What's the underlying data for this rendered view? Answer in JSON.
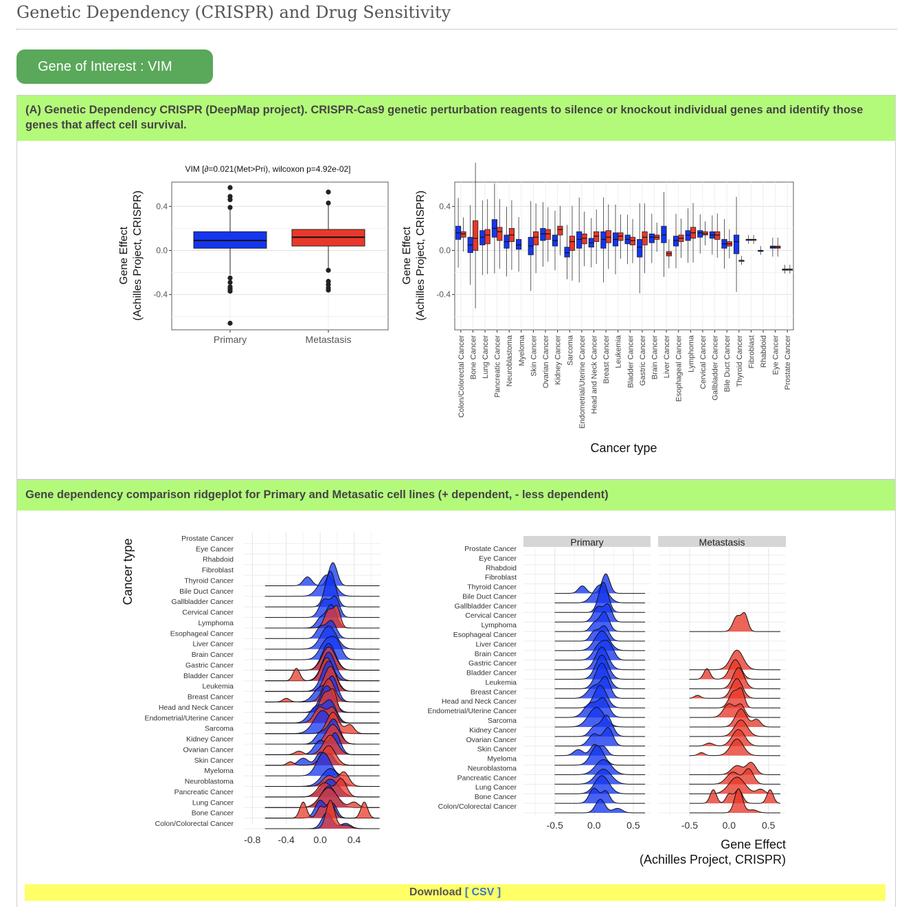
{
  "page": {
    "title": "Genetic Dependency (CRISPR) and Drug Sensitivity"
  },
  "gene": {
    "label": "Gene of Interest : VIM"
  },
  "panel_a": {
    "heading": "(A) Genetic Dependency CRISPR (DeepMap project). CRISPR-Cas9 genetic perturbation reagents to silence or knockout individual genes and identify those genes that affect cell survival."
  },
  "panel_b": {
    "heading": "Gene dependency comparison ridgeplot for Primary and Metasatic cell lines (+ dependent, - less dependent)"
  },
  "download": {
    "label": "Download",
    "open": "[",
    "csv": "CSV",
    "close": "]"
  },
  "colors": {
    "primary": "#1436f0",
    "metastasis": "#e8392a",
    "green_header": "#b4fa7a",
    "pill": "#5aa85a",
    "download_bar": "#ffff66"
  },
  "chart_data": [
    {
      "type": "box",
      "title": "VIM [∂=0.021(Met>Pri), wilcoxon p=4.92e-02]",
      "xlabel": "",
      "ylabel_line1": "Gene Effect",
      "ylabel_line2": "(Achilles Project, CRISPR)",
      "ylim": [
        -0.72,
        0.62
      ],
      "yticks": [
        -0.4,
        0.0,
        0.4
      ],
      "ytick_labels": [
        "-0.4",
        "0.0",
        "0.4"
      ],
      "grid": true,
      "categories": [
        "Primary",
        "Metastasis"
      ],
      "series": [
        {
          "category": "Primary",
          "color": "#1436f0",
          "q1": 0.02,
          "median": 0.09,
          "q3": 0.17,
          "whisker_low": -0.22,
          "whisker_high": 0.39,
          "outliers": [
            0.57,
            0.49,
            0.46,
            0.39,
            -0.25,
            -0.29,
            -0.33,
            -0.35,
            -0.37,
            -0.66
          ]
        },
        {
          "category": "Metastasis",
          "color": "#e8392a",
          "q1": 0.04,
          "median": 0.12,
          "q3": 0.19,
          "whisker_low": -0.18,
          "whisker_high": 0.42,
          "outliers": [
            0.53,
            0.43,
            -0.18,
            -0.28,
            -0.31,
            -0.34,
            -0.36
          ]
        }
      ]
    },
    {
      "type": "box",
      "title": "",
      "xlabel": "Cancer type",
      "ylabel_line1": "Gene Effect",
      "ylabel_line2": "(Achilles Project, CRISPR)",
      "ylim": [
        -0.72,
        0.62
      ],
      "yticks": [
        -0.4,
        0.0,
        0.4
      ],
      "ytick_labels": [
        "-0.4",
        "0.0",
        "0.4"
      ],
      "grid": true,
      "categories": [
        "Colon/Colorectal Cancer",
        "Bone Cancer",
        "Lung Cancer",
        "Pancreatic Cancer",
        "Neuroblastoma",
        "Myeloma",
        "Skin Cancer",
        "Ovarian Cancer",
        "Kidney Cancer",
        "Sarcoma",
        "Endometrial/Uterine Cancer",
        "Head and Neck Cancer",
        "Breast Cancer",
        "Leukemia",
        "Bladder Cancer",
        "Gastric Cancer",
        "Brain Cancer",
        "Liver Cancer",
        "Esophageal Cancer",
        "Lymphoma",
        "Cervical Cancer",
        "Gallbladder Cancer",
        "Bile Duct Cancer",
        "Thyroid Cancer",
        "Fibroblast",
        "Rhabdoid",
        "Eye Cancer",
        "Prostate Cancer"
      ],
      "series": [
        {
          "name": "Primary",
          "color": "#1436f0",
          "boxes": [
            [
              0.1,
              0.16,
              0.22
            ],
            [
              -0.02,
              0.05,
              0.12
            ],
            [
              0.05,
              0.12,
              0.18
            ],
            [
              0.12,
              0.2,
              0.28
            ],
            [
              0.02,
              0.08,
              0.14
            ],
            [
              0.01,
              0.05,
              0.1
            ],
            [
              -0.04,
              0.04,
              0.12
            ],
            [
              0.09,
              0.15,
              0.2
            ],
            [
              0.04,
              0.09,
              0.14
            ],
            [
              -0.06,
              -0.02,
              0.03
            ],
            [
              0.02,
              0.1,
              0.17
            ],
            [
              0.03,
              0.07,
              0.11
            ],
            [
              0.02,
              0.1,
              0.17
            ],
            [
              0.04,
              0.1,
              0.16
            ],
            [
              0.06,
              0.1,
              0.14
            ],
            [
              -0.06,
              0.03,
              0.1
            ],
            [
              0.07,
              0.12,
              0.15
            ],
            [
              0.07,
              0.14,
              0.22
            ],
            [
              0.04,
              0.09,
              0.13
            ],
            [
              0.09,
              0.14,
              0.18
            ],
            [
              0.12,
              0.16,
              0.18
            ],
            [
              0.11,
              0.14,
              0.17
            ],
            [
              0.02,
              0.06,
              0.1
            ],
            [
              -0.03,
              0.08,
              0.14
            ],
            [
              0.1,
              0.1,
              0.1
            ],
            [
              0.0,
              0.0,
              0.0
            ],
            [
              0.02,
              0.03,
              0.04
            ],
            [
              -0.17,
              -0.17,
              -0.17
            ]
          ]
        },
        {
          "name": "Metastasis",
          "color": "#e8392a",
          "boxes": [
            [
              0.12,
              0.15,
              0.17
            ],
            [
              0.0,
              0.11,
              0.27
            ],
            [
              0.06,
              0.14,
              0.19
            ],
            [
              0.09,
              0.17,
              0.21
            ],
            [
              0.08,
              0.14,
              0.2
            ],
            [
              null,
              null,
              null
            ],
            [
              0.05,
              0.12,
              0.17
            ],
            [
              0.1,
              0.15,
              0.19
            ],
            [
              0.14,
              0.19,
              0.22
            ],
            [
              0.0,
              0.08,
              0.13
            ],
            [
              0.06,
              0.11,
              0.15
            ],
            [
              0.08,
              0.13,
              0.17
            ],
            [
              0.07,
              0.12,
              0.18
            ],
            [
              0.09,
              0.13,
              0.16
            ],
            [
              0.05,
              0.09,
              0.12
            ],
            [
              0.05,
              0.12,
              0.17
            ],
            [
              0.1,
              0.12,
              0.14
            ],
            [
              -0.05,
              -0.03,
              -0.01
            ],
            [
              0.08,
              0.11,
              0.14
            ],
            [
              0.11,
              0.16,
              0.21
            ],
            [
              0.14,
              0.15,
              0.17
            ],
            [
              0.1,
              0.14,
              0.17
            ],
            [
              0.04,
              0.06,
              0.08
            ],
            [
              -0.09,
              -0.09,
              -0.09
            ],
            [
              0.1,
              0.1,
              0.1
            ],
            [
              null,
              null,
              null
            ],
            [
              0.02,
              0.03,
              0.04
            ],
            [
              -0.17,
              -0.17,
              -0.17
            ]
          ]
        }
      ]
    },
    {
      "type": "ridgeline",
      "title": "",
      "xlabel": "",
      "ylabel": "Cancer type",
      "xlim": [
        -0.9,
        0.72
      ],
      "xticks": [
        -0.8,
        -0.4,
        0.0,
        0.4
      ],
      "xtick_labels": [
        "-0.8",
        "-0.4",
        "0.0",
        "0.4"
      ],
      "grid": true,
      "categories": [
        "Prostate Cancer",
        "Eye Cancer",
        "Rhabdoid",
        "Fibroblast",
        "Thyroid Cancer",
        "Bile Duct Cancer",
        "Gallbladder Cancer",
        "Cervical Cancer",
        "Lymphoma",
        "Esophageal Cancer",
        "Liver Cancer",
        "Brain Cancer",
        "Gastric Cancer",
        "Bladder Cancer",
        "Leukemia",
        "Breast Cancer",
        "Head and Neck Cancer",
        "Endometrial/Uterine Cancer",
        "Sarcoma",
        "Kidney Cancer",
        "Ovarian Cancer",
        "Skin Cancer",
        "Myeloma",
        "Neuroblastoma",
        "Pancreatic Cancer",
        "Lung Cancer",
        "Bone Cancer",
        "Colon/Colorectal Cancer"
      ],
      "series": [
        {
          "name": "Primary",
          "color": "#1436f0",
          "peaks": [
            null,
            null,
            null,
            null,
            [
              [
                -0.15,
                0.5,
                0.05
              ],
              [
                0.15,
                1.3,
                0.05
              ]
            ],
            [
              0.08,
              1.2,
              0.09
            ],
            [
              0.12,
              2.0,
              0.06
            ],
            [
              [
                0.05,
                1.0,
                0.06
              ],
              [
                0.18,
                1.1,
                0.05
              ]
            ],
            [
              [
                0.0,
                0.5,
                0.05
              ],
              [
                0.13,
                1.3,
                0.06
              ]
            ],
            [
              [
                0.0,
                0.6,
                0.05
              ],
              [
                0.13,
                1.0,
                0.06
              ]
            ],
            [
              0.1,
              1.3,
              0.09
            ],
            [
              [
                0.08,
                1.1,
                0.08
              ],
              [
                0.2,
                0.8,
                0.06
              ]
            ],
            [
              0.1,
              1.5,
              0.08
            ],
            [
              0.1,
              1.6,
              0.08
            ],
            [
              0.1,
              1.7,
              0.08
            ],
            [
              [
                0.0,
                0.8,
                0.08
              ],
              [
                0.15,
                1.3,
                0.06
              ]
            ],
            [
              0.08,
              1.5,
              0.08
            ],
            [
              [
                -0.05,
                0.9,
                0.08
              ],
              [
                0.12,
                1.2,
                0.07
              ]
            ],
            [
              0.03,
              1.3,
              0.1
            ],
            [
              [
                0.0,
                0.6,
                0.06
              ],
              [
                0.16,
                1.4,
                0.07
              ]
            ],
            [
              [
                0.0,
                0.8,
                0.07
              ],
              [
                0.18,
                1.2,
                0.06
              ]
            ],
            [
              [
                -0.2,
                0.4,
                0.06
              ],
              [
                0.0,
                0.7,
                0.05
              ],
              [
                0.12,
                0.6,
                0.05
              ]
            ],
            [
              0.04,
              1.3,
              0.08
            ],
            [
              0.12,
              1.0,
              0.1
            ],
            [
              0.12,
              1.0,
              0.1
            ],
            [
              0.1,
              1.2,
              0.09
            ],
            [
              [
                0.0,
                1.0,
                0.06
              ],
              [
                0.15,
                0.8,
                0.05
              ]
            ],
            [
              [
                0.08,
                0.9,
                0.06
              ],
              [
                0.3,
                0.3,
                0.06
              ]
            ]
          ]
        },
        {
          "name": "Metastasis",
          "color": "#e8392a",
          "peaks": [
            null,
            null,
            null,
            null,
            null,
            null,
            null,
            null,
            [
              [
                0.1,
                1.0,
                0.05
              ],
              [
                0.2,
                1.1,
                0.04
              ]
            ],
            null,
            null,
            null,
            [
              0.1,
              1.3,
              0.08
            ],
            [
              [
                -0.28,
                0.7,
                0.04
              ],
              [
                0.08,
                1.3,
                0.07
              ]
            ],
            [
              0.12,
              1.4,
              0.07
            ],
            [
              [
                -0.4,
                0.2,
                0.04
              ],
              [
                0.1,
                1.3,
                0.07
              ]
            ],
            [
              [
                0.06,
                1.1,
                0.06
              ],
              [
                0.16,
                1.0,
                0.04
              ]
            ],
            [
              [
                0.0,
                0.9,
                0.07
              ],
              [
                0.15,
                0.8,
                0.05
              ]
            ],
            [
              [
                0.15,
                1.2,
                0.07
              ],
              [
                0.35,
                0.5,
                0.05
              ]
            ],
            [
              0.15,
              1.1,
              0.08
            ],
            [
              [
                -0.25,
                0.2,
                0.05
              ],
              [
                0.12,
                1.1,
                0.08
              ]
            ],
            [
              [
                -0.35,
                0.2,
                0.04
              ],
              [
                0.1,
                1.1,
                0.08
              ]
            ],
            null,
            [
              [
                0.1,
                0.6,
                0.07
              ],
              [
                0.28,
                0.8,
                0.06
              ]
            ],
            [
              [
                0.05,
                0.8,
                0.08
              ],
              [
                0.25,
                1.0,
                0.06
              ]
            ],
            [
              [
                0.1,
                1.1,
                0.1
              ],
              [
                0.4,
                0.3,
                0.05
              ]
            ],
            [
              [
                -0.2,
                0.9,
                0.04
              ],
              [
                0.0,
                0.6,
                0.04
              ],
              [
                0.12,
                0.9,
                0.05
              ],
              [
                0.52,
                0.9,
                0.04
              ]
            ],
            [
              [
                0.12,
                1.6,
                0.05
              ],
              [
                0.3,
                0.2,
                0.06
              ]
            ]
          ]
        }
      ]
    },
    {
      "type": "ridgeline",
      "title": "",
      "xlabel_line1": "Gene Effect",
      "xlabel_line2": "(Achilles Project, CRISPR)",
      "ylabel": "",
      "facets": [
        "Primary",
        "Metastasis"
      ],
      "xlim": [
        -0.9,
        0.72
      ],
      "xticks": [
        -0.5,
        0.0,
        0.5
      ],
      "xtick_labels": [
        "-0.5",
        "0.0",
        "0.5"
      ],
      "grid": true,
      "categories": [
        "Prostate Cancer",
        "Eye Cancer",
        "Rhabdoid",
        "Fibroblast",
        "Thyroid Cancer",
        "Bile Duct Cancer",
        "Gallbladder Cancer",
        "Cervical Cancer",
        "Lymphoma",
        "Esophageal Cancer",
        "Liver Cancer",
        "Brain Cancer",
        "Gastric Cancer",
        "Bladder Cancer",
        "Leukemia",
        "Breast Cancer",
        "Head and Neck Cancer",
        "Endometrial/Uterine Cancer",
        "Sarcoma",
        "Kidney Cancer",
        "Ovarian Cancer",
        "Skin Cancer",
        "Myeloma",
        "Neuroblastoma",
        "Pancreatic Cancer",
        "Lung Cancer",
        "Bone Cancer",
        "Colon/Colorectal Cancer"
      ],
      "series_ref": "same densities as previous ridgeline, split into facets"
    }
  ]
}
